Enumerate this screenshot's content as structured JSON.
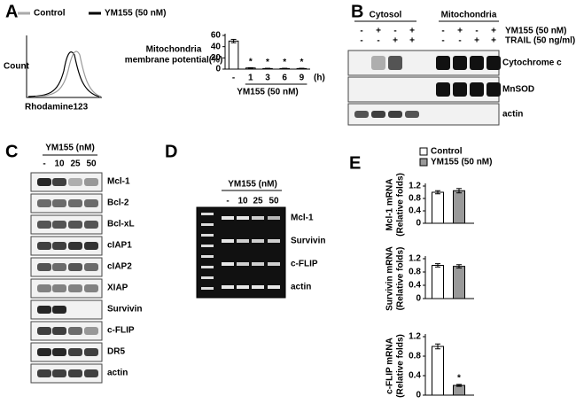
{
  "panels": {
    "A": {
      "letter": "A",
      "legend": [
        {
          "name": "Control",
          "color": "#aaaaaa"
        },
        {
          "name": "YM155 (50 nM)",
          "color": "#000000"
        }
      ],
      "histogram": {
        "ylabel": "Count",
        "xlabel": "Rhodamine123"
      },
      "chart": {
        "type": "bar",
        "ylabel": [
          "Mitochondria",
          "membrane potential(%)"
        ],
        "categories": [
          "-",
          "1",
          "3",
          "6",
          "9"
        ],
        "unit": "(h)",
        "xlabel": "YM155 (50 nM)",
        "values": [
          50,
          2,
          1,
          1,
          1
        ],
        "errors": [
          3,
          0.5,
          0.5,
          0.5,
          0.5
        ],
        "color": "#ffffff",
        "ylim": [
          0,
          60
        ],
        "yticks": [
          0,
          20,
          40,
          60
        ],
        "annotations": [
          {
            "text": "*",
            "category": "1"
          },
          {
            "text": "*",
            "category": "3"
          },
          {
            "text": "*",
            "category": "6"
          },
          {
            "text": "*",
            "category": "9"
          }
        ]
      }
    },
    "B": {
      "letter": "B",
      "groups": [
        "Cytosol",
        "Mitochondria"
      ],
      "treatments": [
        {
          "label": "YM155 (50 nM)",
          "signs": [
            "-",
            "+",
            "-",
            "+",
            "-",
            "+",
            "-",
            "+"
          ]
        },
        {
          "label": "TRAIL (50 ng/ml)",
          "signs": [
            "-",
            "-",
            "+",
            "+",
            "-",
            "-",
            "+",
            "+"
          ]
        }
      ],
      "blots": [
        "Cytochrome c",
        "MnSOD",
        "actin"
      ]
    },
    "C": {
      "letter": "C",
      "treatment": "YM155 (nM)",
      "lanes": [
        "-",
        "10",
        "25",
        "50"
      ],
      "blots": [
        "Mcl-1",
        "Bcl-2",
        "Bcl-xL",
        "cIAP1",
        "cIAP2",
        "XIAP",
        "Survivin",
        "c-FLIP",
        "DR5",
        "actin"
      ]
    },
    "D": {
      "letter": "D",
      "treatment": "YM155 (nM)",
      "lanes": [
        "-",
        "10",
        "25",
        "50"
      ],
      "blots": [
        "Mcl-1",
        "Survivin",
        "c-FLIP",
        "actin"
      ]
    },
    "E": {
      "letter": "E",
      "series_names": [
        "Control",
        "YM155 (50 nM)"
      ],
      "colors": [
        "#ffffff",
        "#999999"
      ],
      "charts": [
        {
          "type": "bar",
          "ylabel": [
            "Mcl-1 mRNA",
            "(Relative folds)"
          ],
          "values": [
            1.0,
            1.05
          ],
          "errors": [
            0.05,
            0.07
          ],
          "ylim": [
            0,
            1.2
          ],
          "yticks": [
            0,
            0.4,
            0.8,
            1.2
          ]
        },
        {
          "type": "bar",
          "ylabel": [
            "Survivin mRNA",
            "(Relative folds)"
          ],
          "values": [
            1.0,
            0.97
          ],
          "errors": [
            0.05,
            0.05
          ],
          "ylim": [
            0,
            1.2
          ],
          "yticks": [
            0,
            0.4,
            0.8,
            1.2
          ]
        },
        {
          "type": "bar",
          "ylabel": [
            "c-FLIP mRNA",
            "(Relative folds)"
          ],
          "values": [
            1.0,
            0.2
          ],
          "errors": [
            0.05,
            0.02
          ],
          "ylim": [
            0,
            1.2
          ],
          "yticks": [
            0,
            0.4,
            0.8,
            1.2
          ],
          "annotations": [
            {
              "text": "*",
              "series": "YM155 (50 nM)"
            }
          ]
        }
      ]
    }
  }
}
